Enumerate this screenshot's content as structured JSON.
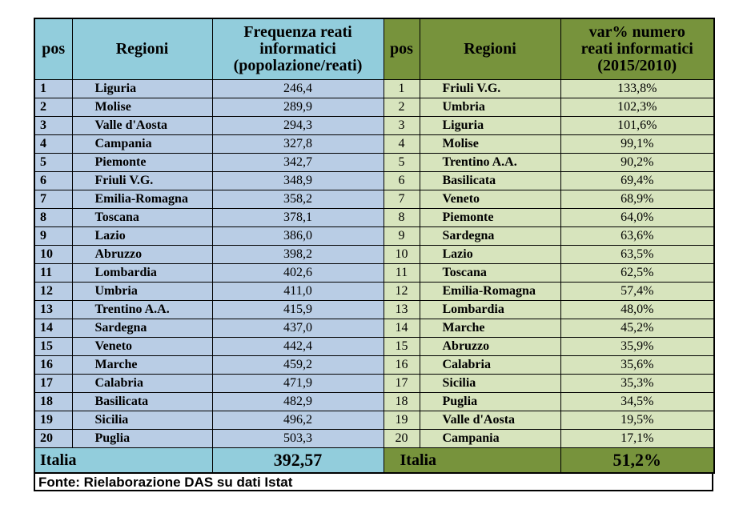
{
  "headers": {
    "left_pos": "pos",
    "left_region": "Regioni",
    "left_metric_l1": "Frequenza reati",
    "left_metric_l2": "informatici",
    "left_metric_l3": "(popolazione/reati)",
    "right_pos": "pos",
    "right_region": "Regioni",
    "right_metric_l1": "var% numero",
    "right_metric_l2": "reati informatici",
    "right_metric_l3": "(2015/2010)"
  },
  "left_rows": [
    {
      "pos": "1",
      "region": "Liguria",
      "value": "246,4"
    },
    {
      "pos": "2",
      "region": "Molise",
      "value": "289,9"
    },
    {
      "pos": "3",
      "region": "Valle d'Aosta",
      "value": "294,3"
    },
    {
      "pos": "4",
      "region": "Campania",
      "value": "327,8"
    },
    {
      "pos": "5",
      "region": "Piemonte",
      "value": "342,7"
    },
    {
      "pos": "6",
      "region": "Friuli V.G.",
      "value": "348,9"
    },
    {
      "pos": "7",
      "region": "Emilia-Romagna",
      "value": "358,2"
    },
    {
      "pos": "8",
      "region": "Toscana",
      "value": "378,1"
    },
    {
      "pos": "9",
      "region": "Lazio",
      "value": "386,0"
    },
    {
      "pos": "10",
      "region": "Abruzzo",
      "value": "398,2"
    },
    {
      "pos": "11",
      "region": "Lombardia",
      "value": "402,6"
    },
    {
      "pos": "12",
      "region": "Umbria",
      "value": "411,0"
    },
    {
      "pos": "13",
      "region": "Trentino A.A.",
      "value": "415,9"
    },
    {
      "pos": "14",
      "region": "Sardegna",
      "value": "437,0"
    },
    {
      "pos": "15",
      "region": "Veneto",
      "value": "442,4"
    },
    {
      "pos": "16",
      "region": "Marche",
      "value": "459,2"
    },
    {
      "pos": "17",
      "region": "Calabria",
      "value": "471,9"
    },
    {
      "pos": "18",
      "region": "Basilicata",
      "value": "482,9"
    },
    {
      "pos": "19",
      "region": "Sicilia",
      "value": "496,2"
    },
    {
      "pos": "20",
      "region": "Puglia",
      "value": "503,3"
    }
  ],
  "right_rows": [
    {
      "pos": "1",
      "region": "Friuli V.G.",
      "value": "133,8%"
    },
    {
      "pos": "2",
      "region": "Umbria",
      "value": "102,3%"
    },
    {
      "pos": "3",
      "region": "Liguria",
      "value": "101,6%"
    },
    {
      "pos": "4",
      "region": "Molise",
      "value": "99,1%"
    },
    {
      "pos": "5",
      "region": "Trentino A.A.",
      "value": "90,2%"
    },
    {
      "pos": "6",
      "region": "Basilicata",
      "value": "69,4%"
    },
    {
      "pos": "7",
      "region": "Veneto",
      "value": "68,9%"
    },
    {
      "pos": "8",
      "region": "Piemonte",
      "value": "64,0%"
    },
    {
      "pos": "9",
      "region": "Sardegna",
      "value": "63,6%"
    },
    {
      "pos": "10",
      "region": "Lazio",
      "value": "63,5%"
    },
    {
      "pos": "11",
      "region": "Toscana",
      "value": "62,5%"
    },
    {
      "pos": "12",
      "region": "Emilia-Romagna",
      "value": "57,4%"
    },
    {
      "pos": "13",
      "region": "Lombardia",
      "value": "48,0%"
    },
    {
      "pos": "14",
      "region": "Marche",
      "value": "45,2%"
    },
    {
      "pos": "15",
      "region": "Abruzzo",
      "value": "35,9%"
    },
    {
      "pos": "16",
      "region": "Calabria",
      "value": "35,6%"
    },
    {
      "pos": "17",
      "region": "Sicilia",
      "value": "35,3%"
    },
    {
      "pos": "18",
      "region": "Puglia",
      "value": "34,5%"
    },
    {
      "pos": "19",
      "region": "Valle d'Aosta",
      "value": "19,5%"
    },
    {
      "pos": "20",
      "region": "Campania",
      "value": "17,1%"
    }
  ],
  "totals": {
    "left_label": "Italia",
    "left_value": "392,57",
    "right_label": "Italia",
    "right_value": "51,2%"
  },
  "source": "Fonte: Rielaborazione DAS su dati Istat",
  "colors": {
    "left_header": "#92cddc",
    "left_body": "#b9cde5",
    "right_header": "#77933c",
    "right_body": "#d7e4bd"
  }
}
